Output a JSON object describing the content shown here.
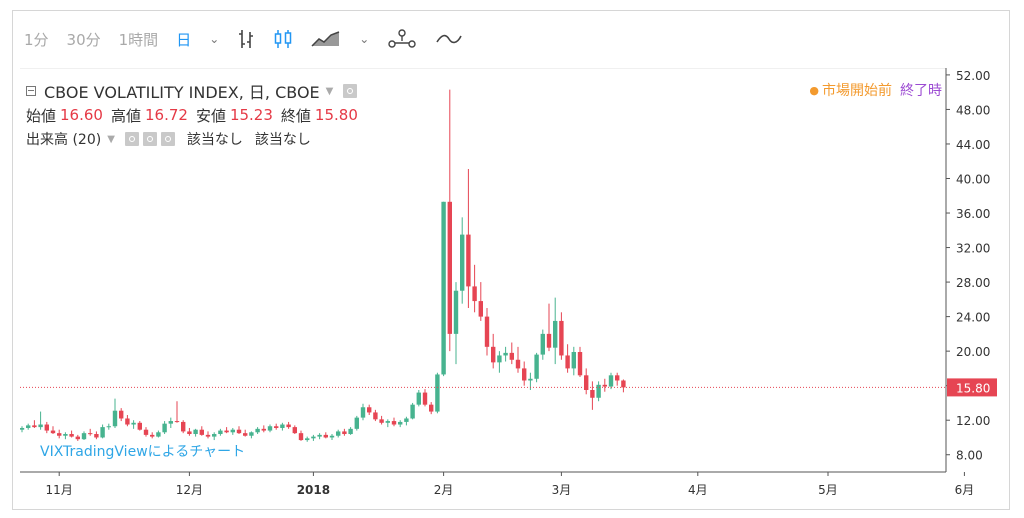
{
  "toolbar": {
    "items": [
      {
        "label": "1分",
        "active": false
      },
      {
        "label": "30分",
        "active": false
      },
      {
        "label": "1時間",
        "active": false
      },
      {
        "label": "日",
        "active": true
      }
    ],
    "icons": [
      "chevron-down-icon",
      "bar-chart-icon",
      "candlestick-icon",
      "area-chart-icon",
      "chevron-down-icon",
      "indicators-icon",
      "line-compare-icon"
    ]
  },
  "legend": {
    "title": "CBOE VOLATILITY INDEX, 日, CBOE",
    "ohlc": [
      {
        "label": "始値",
        "value": "16.60"
      },
      {
        "label": "高値",
        "value": "16.72"
      },
      {
        "label": "安値",
        "value": "15.23"
      },
      {
        "label": "終値",
        "value": "15.80"
      }
    ],
    "volume_label": "出来高 (20)",
    "volume_values": [
      "該当なし",
      "該当なし"
    ]
  },
  "status": {
    "dot": "●",
    "market": "市場開始前",
    "state": "終了時"
  },
  "watermark": "VIXTradingViewによるチャート",
  "colors": {
    "up": "#47b38f",
    "down": "#e64553",
    "last": "#e64553",
    "accent": "#2196f3"
  },
  "chart_data": {
    "type": "candlestick",
    "yaxis_ticks": [
      "8.00",
      "12.00",
      "16.00",
      "20.00",
      "24.00",
      "28.00",
      "32.00",
      "36.00",
      "40.00",
      "44.00",
      "48.00",
      "52.00"
    ],
    "ylim": [
      6.0,
      52.8
    ],
    "xaxis_ticks": [
      {
        "label": "11月",
        "idx": 6,
        "bold": false
      },
      {
        "label": "12月",
        "idx": 27,
        "bold": false
      },
      {
        "label": "2018",
        "idx": 47,
        "bold": true
      },
      {
        "label": "2月",
        "idx": 68,
        "bold": false
      },
      {
        "label": "3月",
        "idx": 87,
        "bold": false
      },
      {
        "label": "4月",
        "idx": 109,
        "bold": false
      },
      {
        "label": "5月",
        "idx": 130,
        "bold": false
      },
      {
        "label": "6月",
        "idx": 152,
        "bold": false
      }
    ],
    "last_value": "15.80",
    "last_num": 15.8,
    "candles": [
      [
        10.9,
        11.3,
        10.6,
        11.1
      ],
      [
        11.1,
        11.6,
        10.9,
        11.4
      ],
      [
        11.4,
        12.0,
        11.1,
        11.2
      ],
      [
        11.2,
        13.0,
        10.9,
        11.5
      ],
      [
        11.5,
        11.8,
        10.5,
        10.8
      ],
      [
        10.8,
        11.3,
        10.4,
        10.5
      ],
      [
        10.5,
        10.9,
        9.9,
        10.2
      ],
      [
        10.2,
        10.6,
        9.8,
        10.4
      ],
      [
        10.4,
        10.8,
        10.0,
        10.1
      ],
      [
        10.1,
        10.3,
        9.6,
        9.8
      ],
      [
        9.8,
        10.7,
        9.7,
        10.5
      ],
      [
        10.5,
        11.0,
        10.2,
        10.4
      ],
      [
        10.4,
        10.7,
        9.8,
        10.0
      ],
      [
        10.0,
        11.5,
        9.9,
        11.2
      ],
      [
        11.2,
        11.6,
        10.9,
        11.3
      ],
      [
        11.3,
        14.5,
        11.1,
        13.1
      ],
      [
        13.1,
        13.4,
        11.9,
        12.2
      ],
      [
        12.2,
        12.6,
        11.3,
        11.5
      ],
      [
        11.5,
        12.0,
        11.0,
        11.7
      ],
      [
        11.7,
        11.9,
        10.8,
        10.9
      ],
      [
        10.9,
        11.2,
        10.1,
        10.3
      ],
      [
        10.3,
        10.6,
        9.9,
        10.1
      ],
      [
        10.1,
        10.8,
        10.0,
        10.6
      ],
      [
        10.6,
        11.9,
        10.4,
        11.6
      ],
      [
        11.6,
        12.3,
        11.1,
        11.9
      ],
      [
        11.9,
        14.2,
        11.7,
        11.8
      ],
      [
        11.8,
        12.0,
        10.5,
        10.7
      ],
      [
        10.7,
        11.1,
        10.2,
        10.4
      ],
      [
        10.4,
        11.0,
        10.1,
        10.9
      ],
      [
        10.9,
        11.3,
        10.2,
        10.3
      ],
      [
        10.3,
        10.7,
        9.9,
        10.1
      ],
      [
        10.1,
        10.6,
        9.7,
        10.4
      ],
      [
        10.4,
        11.0,
        10.2,
        10.8
      ],
      [
        10.8,
        11.2,
        10.5,
        10.6
      ],
      [
        10.6,
        11.1,
        10.3,
        10.9
      ],
      [
        10.9,
        11.3,
        10.4,
        10.5
      ],
      [
        10.5,
        10.9,
        10.1,
        10.2
      ],
      [
        10.2,
        10.7,
        9.9,
        10.6
      ],
      [
        10.6,
        11.2,
        10.4,
        11.0
      ],
      [
        11.0,
        11.4,
        10.6,
        10.8
      ],
      [
        10.8,
        11.5,
        10.6,
        11.3
      ],
      [
        11.3,
        11.6,
        10.9,
        11.1
      ],
      [
        11.1,
        11.7,
        10.8,
        11.5
      ],
      [
        11.5,
        11.8,
        11.0,
        11.2
      ],
      [
        11.2,
        11.4,
        10.4,
        10.5
      ],
      [
        10.5,
        10.8,
        9.6,
        9.7
      ],
      [
        9.7,
        10.1,
        9.5,
        9.9
      ],
      [
        9.9,
        10.3,
        9.6,
        10.1
      ],
      [
        10.1,
        10.5,
        9.8,
        10.3
      ],
      [
        10.3,
        10.6,
        9.9,
        10.0
      ],
      [
        10.0,
        10.4,
        9.7,
        10.2
      ],
      [
        10.2,
        10.9,
        10.0,
        10.7
      ],
      [
        10.7,
        11.0,
        10.2,
        10.4
      ],
      [
        10.4,
        11.2,
        10.3,
        11.0
      ],
      [
        11.0,
        12.5,
        10.8,
        12.3
      ],
      [
        12.3,
        13.9,
        12.0,
        13.5
      ],
      [
        13.5,
        13.8,
        12.6,
        12.9
      ],
      [
        12.9,
        13.2,
        11.9,
        12.1
      ],
      [
        12.1,
        12.5,
        11.5,
        11.7
      ],
      [
        11.7,
        12.1,
        11.2,
        11.9
      ],
      [
        11.9,
        12.3,
        11.3,
        11.5
      ],
      [
        11.5,
        12.0,
        11.2,
        11.8
      ],
      [
        11.8,
        12.4,
        11.4,
        12.2
      ],
      [
        12.2,
        14.0,
        12.1,
        13.8
      ],
      [
        13.8,
        15.5,
        13.6,
        15.2
      ],
      [
        15.2,
        15.6,
        13.6,
        13.8
      ],
      [
        13.8,
        14.1,
        12.7,
        13.0
      ],
      [
        13.0,
        17.5,
        12.8,
        17.3
      ],
      [
        17.3,
        37.3,
        17.1,
        37.3
      ],
      [
        37.3,
        50.3,
        20.0,
        22.0
      ],
      [
        22.0,
        28.0,
        18.5,
        27.0
      ],
      [
        27.0,
        35.5,
        25.5,
        33.5
      ],
      [
        33.5,
        41.1,
        25.0,
        27.5
      ],
      [
        27.5,
        30.0,
        24.5,
        25.8
      ],
      [
        25.8,
        28.0,
        23.5,
        24.0
      ],
      [
        24.0,
        25.0,
        19.5,
        20.5
      ],
      [
        20.5,
        22.0,
        18.0,
        18.7
      ],
      [
        18.7,
        20.0,
        17.5,
        19.5
      ],
      [
        19.5,
        20.5,
        18.8,
        19.8
      ],
      [
        19.8,
        21.0,
        18.5,
        19.0
      ],
      [
        19.0,
        20.5,
        17.5,
        18.0
      ],
      [
        18.0,
        18.8,
        16.0,
        16.6
      ],
      [
        16.6,
        17.5,
        15.5,
        16.8
      ],
      [
        16.8,
        19.8,
        16.4,
        19.6
      ],
      [
        19.6,
        22.5,
        19.0,
        22.0
      ],
      [
        22.0,
        25.5,
        20.0,
        20.4
      ],
      [
        20.4,
        26.2,
        18.5,
        23.5
      ],
      [
        23.5,
        24.5,
        19.0,
        19.5
      ],
      [
        19.5,
        20.8,
        17.5,
        18.0
      ],
      [
        18.0,
        20.5,
        17.2,
        19.9
      ],
      [
        19.9,
        20.5,
        17.0,
        17.2
      ],
      [
        17.2,
        18.0,
        15.0,
        15.5
      ],
      [
        15.5,
        16.5,
        13.2,
        14.6
      ],
      [
        14.6,
        16.5,
        14.2,
        16.1
      ],
      [
        16.1,
        16.8,
        15.3,
        15.9
      ],
      [
        15.9,
        17.5,
        15.6,
        17.2
      ],
      [
        17.2,
        17.5,
        16.0,
        16.6
      ],
      [
        16.6,
        16.72,
        15.23,
        15.8
      ]
    ]
  }
}
